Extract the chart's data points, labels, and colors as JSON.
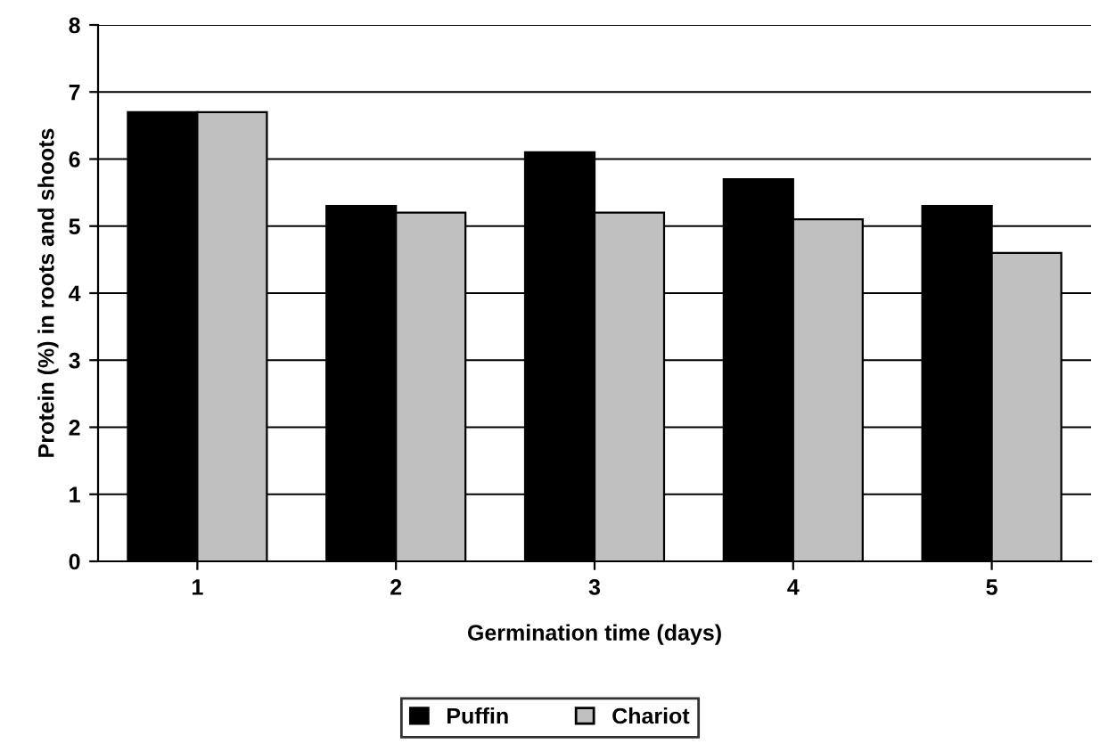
{
  "chart_data": {
    "type": "bar",
    "xlabel": "Germination time (days)",
    "ylabel": "Protein (%) in roots and shoots",
    "categories": [
      "1",
      "2",
      "3",
      "4",
      "5"
    ],
    "series": [
      {
        "name": "Puffin",
        "color": "#000000",
        "values": [
          6.7,
          5.3,
          6.1,
          5.7,
          5.3
        ]
      },
      {
        "name": "Chariot",
        "color": "#c0c0c0",
        "values": [
          6.7,
          5.2,
          5.2,
          5.1,
          4.6
        ]
      }
    ],
    "ylim": [
      0,
      8
    ],
    "yticks": [
      0,
      1,
      2,
      3,
      4,
      5,
      6,
      7,
      8
    ],
    "grid": "y",
    "legend": "bottom"
  }
}
